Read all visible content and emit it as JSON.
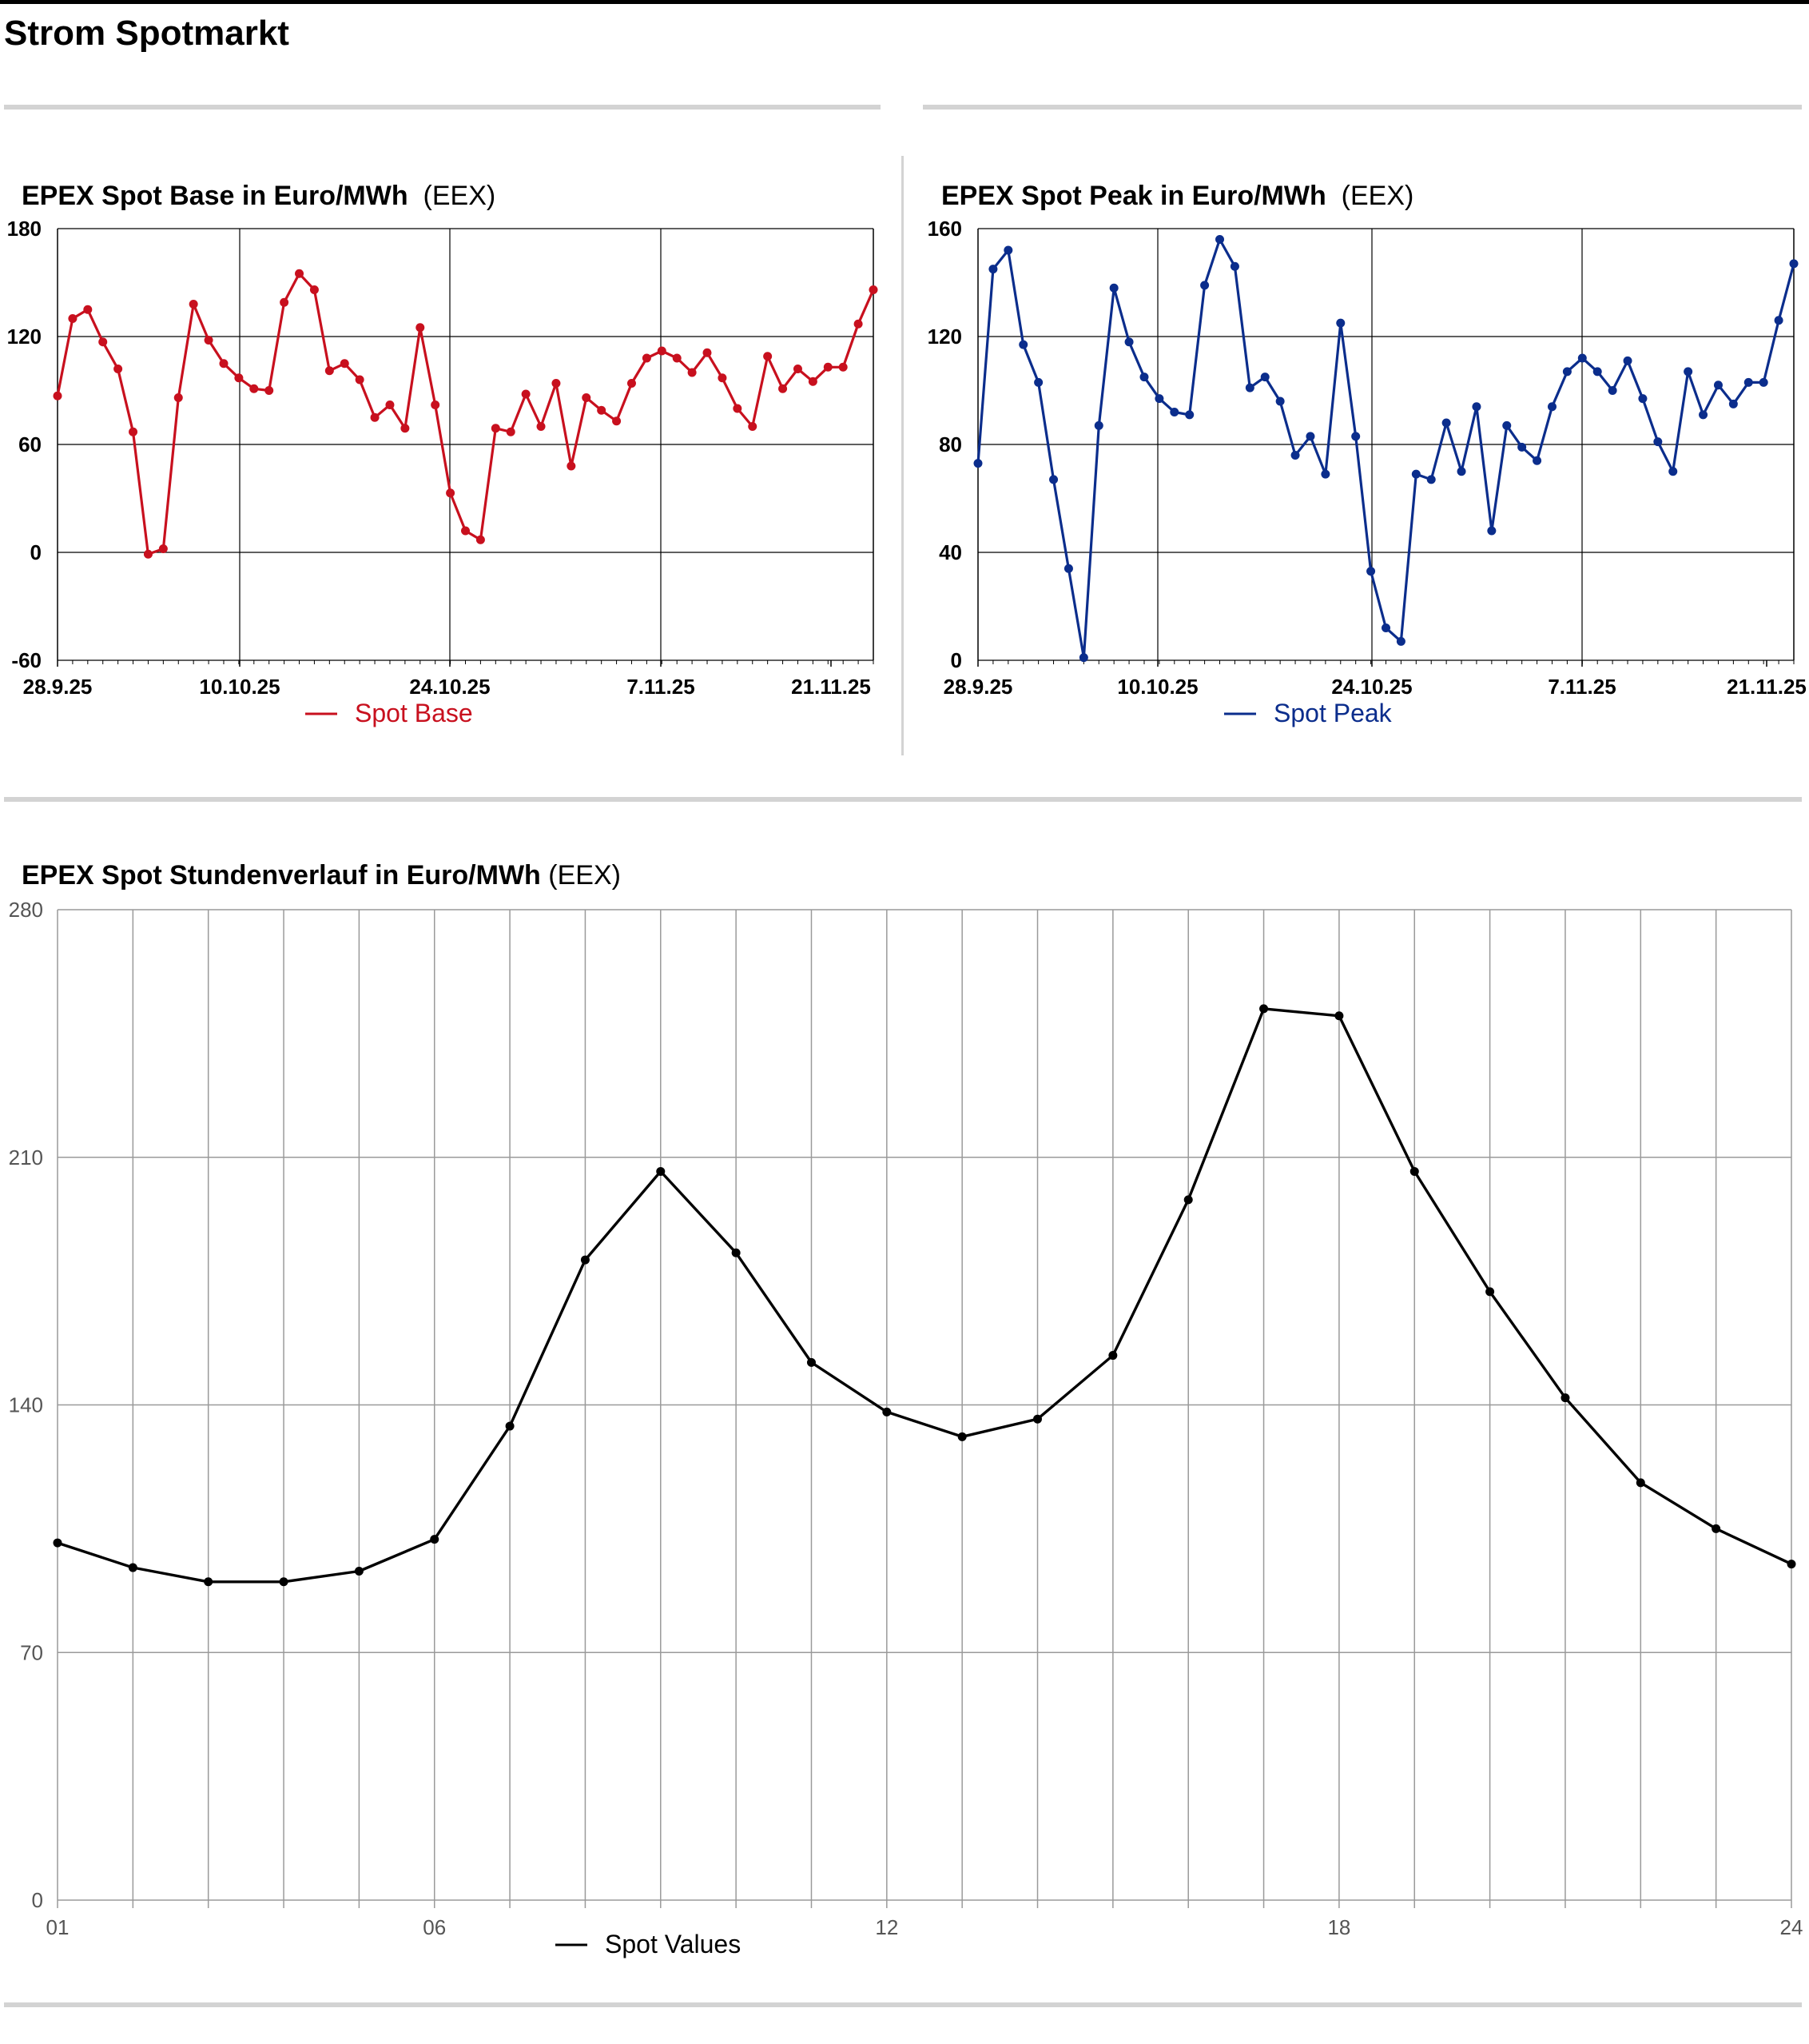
{
  "page": {
    "title": "Strom Spotmarkt"
  },
  "charts": {
    "base": {
      "title_bold": "EPEX Spot Base in Euro/MWh",
      "title_source": "(EEX)",
      "legend": "Spot Base",
      "color": "#c8101e"
    },
    "peak": {
      "title_bold": "EPEX Spot Peak in Euro/MWh",
      "title_source": "(EEX)",
      "legend": "Spot Peak",
      "color": "#0b2d8c"
    },
    "hourly": {
      "title_bold": "EPEX Spot Stundenverlauf in Euro/MWh",
      "title_source": "(EEX)",
      "legend": "Spot Values",
      "color": "#000000"
    }
  },
  "chart_data": [
    {
      "id": "base",
      "type": "line",
      "title": "EPEX Spot Base in Euro/MWh (EEX)",
      "series": [
        {
          "name": "Spot Base",
          "values": [
            87,
            130,
            135,
            117,
            102,
            67,
            -1,
            2,
            86,
            138,
            118,
            105,
            97,
            91,
            90,
            139,
            155,
            146,
            101,
            105,
            96,
            75,
            82,
            69,
            125,
            82,
            33,
            12,
            7,
            69,
            67,
            88,
            70,
            94,
            48,
            86,
            79,
            73,
            94,
            108,
            112,
            108,
            100,
            111,
            97,
            80,
            70,
            109,
            91,
            102,
            95,
            103,
            103,
            127,
            146
          ]
        }
      ],
      "x_ticks": [
        "28.9.25",
        "10.10.25",
        "24.10.25",
        "7.11.25",
        "21.11.25"
      ],
      "ylim": [
        -60,
        180
      ],
      "y_ticks": [
        "180",
        "120",
        "60",
        "0",
        "-60"
      ],
      "grid": true,
      "legend_position": "bottom"
    },
    {
      "id": "peak",
      "type": "line",
      "title": "EPEX Spot Peak in Euro/MWh (EEX)",
      "series": [
        {
          "name": "Spot Peak",
          "values": [
            73,
            145,
            152,
            117,
            103,
            67,
            34,
            1,
            87,
            138,
            118,
            105,
            97,
            92,
            91,
            139,
            156,
            146,
            101,
            105,
            96,
            76,
            83,
            69,
            125,
            83,
            33,
            12,
            7,
            69,
            67,
            88,
            70,
            94,
            48,
            87,
            79,
            74,
            94,
            107,
            112,
            107,
            100,
            111,
            97,
            81,
            70,
            107,
            91,
            102,
            95,
            103,
            103,
            126,
            147
          ]
        }
      ],
      "x_ticks": [
        "28.9.25",
        "10.10.25",
        "24.10.25",
        "7.11.25",
        "21.11.25"
      ],
      "ylim": [
        0,
        160
      ],
      "y_ticks": [
        "160",
        "120",
        "80",
        "40",
        "0"
      ],
      "grid": true,
      "legend_position": "bottom"
    },
    {
      "id": "hourly",
      "type": "line",
      "title": "EPEX Spot Stundenverlauf in Euro/MWh (EEX)",
      "x": [
        1,
        2,
        3,
        4,
        5,
        6,
        7,
        8,
        9,
        10,
        11,
        12,
        13,
        14,
        15,
        16,
        17,
        18,
        19,
        20,
        21,
        22,
        23,
        24
      ],
      "series": [
        {
          "name": "Spot Values",
          "values": [
            101,
            94,
            90,
            90,
            93,
            102,
            134,
            181,
            206,
            183,
            152,
            138,
            131,
            136,
            154,
            198,
            252,
            250,
            206,
            172,
            142,
            118,
            105,
            95
          ]
        }
      ],
      "x_ticks": [
        "01",
        "06",
        "12",
        "18",
        "24"
      ],
      "ylim": [
        0,
        280
      ],
      "y_ticks": [
        "280",
        "210",
        "140",
        "70",
        "0"
      ],
      "grid": true,
      "legend_position": "bottom"
    }
  ]
}
